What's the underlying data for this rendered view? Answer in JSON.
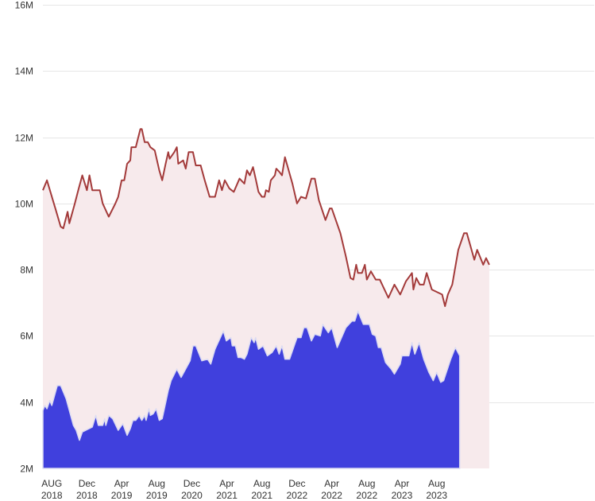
{
  "chart_data": {
    "type": "area",
    "y_tick_labels": [
      "2M",
      "4M",
      "6M",
      "8M",
      "10M",
      "12M",
      "14M",
      "16M"
    ],
    "y_ticks": [
      2000000,
      4000000,
      6000000,
      8000000,
      10000000,
      12000000,
      14000000,
      16000000
    ],
    "ylim": [
      2000000,
      16000000
    ],
    "x_range": [
      "2018-07-01",
      "2023-10-01"
    ],
    "x_ticks": [
      {
        "date": "2018-08-01",
        "month": "AUG",
        "year": "2018"
      },
      {
        "date": "2018-12-01",
        "month": "Dec",
        "year": "2018"
      },
      {
        "date": "2019-04-01",
        "month": "Apr",
        "year": "2019"
      },
      {
        "date": "2019-08-01",
        "month": "Aug",
        "year": "2019"
      },
      {
        "date": "2019-12-01",
        "month": "Dec",
        "year": "2020"
      },
      {
        "date": "2020-04-01",
        "month": "Apr",
        "year": "2021"
      },
      {
        "date": "2020-08-01",
        "month": "Aug",
        "year": "2021"
      },
      {
        "date": "2020-12-01",
        "month": "Dec",
        "year": "2022"
      },
      {
        "date": "2021-04-01",
        "month": "Apr",
        "year": "2022"
      },
      {
        "date": "2021-08-01",
        "month": "Aug",
        "year": "2022"
      },
      {
        "date": "2021-12-01",
        "month": "Apr",
        "year": "2023"
      },
      {
        "date": "2022-04-01",
        "month": "Aug",
        "year": "2023"
      }
    ],
    "grid": true,
    "colors": {
      "upper_line": "#a33a3a",
      "upper_fill": "#f7eaec",
      "lower_fill": "#4040dd",
      "grid": "#e6e6e6"
    },
    "series": [
      {
        "values": [
          [
            "2018-07-01",
            10400000
          ],
          [
            "2018-07-15",
            10700000
          ],
          [
            "2018-08-15",
            9800000
          ],
          [
            "2018-09-01",
            9300000
          ],
          [
            "2018-09-10",
            9250000
          ],
          [
            "2018-09-25",
            9750000
          ],
          [
            "2018-10-01",
            9400000
          ],
          [
            "2018-10-20",
            10000000
          ],
          [
            "2018-11-01",
            10400000
          ],
          [
            "2018-11-15",
            10850000
          ],
          [
            "2018-12-01",
            10400000
          ],
          [
            "2018-12-10",
            10850000
          ],
          [
            "2018-12-20",
            10400000
          ],
          [
            "2019-01-15",
            10400000
          ],
          [
            "2019-01-25",
            10000000
          ],
          [
            "2019-02-15",
            9600000
          ],
          [
            "2019-03-10",
            10000000
          ],
          [
            "2019-03-20",
            10200000
          ],
          [
            "2019-04-01",
            10700000
          ],
          [
            "2019-04-10",
            10700000
          ],
          [
            "2019-04-20",
            11200000
          ],
          [
            "2019-05-01",
            11300000
          ],
          [
            "2019-05-05",
            11700000
          ],
          [
            "2019-05-20",
            11700000
          ],
          [
            "2019-06-05",
            12250000
          ],
          [
            "2019-06-10",
            12250000
          ],
          [
            "2019-06-20",
            11850000
          ],
          [
            "2019-07-01",
            11850000
          ],
          [
            "2019-07-10",
            11700000
          ],
          [
            "2019-07-25",
            11600000
          ],
          [
            "2019-08-10",
            11000000
          ],
          [
            "2019-08-20",
            10700000
          ],
          [
            "2019-09-01",
            11200000
          ],
          [
            "2019-09-10",
            11550000
          ],
          [
            "2019-09-15",
            11350000
          ],
          [
            "2019-10-01",
            11550000
          ],
          [
            "2019-10-10",
            11700000
          ],
          [
            "2019-10-15",
            11200000
          ],
          [
            "2019-11-01",
            11300000
          ],
          [
            "2019-11-10",
            11050000
          ],
          [
            "2019-11-20",
            11550000
          ],
          [
            "2019-12-05",
            11550000
          ],
          [
            "2019-12-15",
            11150000
          ],
          [
            "2020-01-01",
            11150000
          ],
          [
            "2020-01-15",
            10700000
          ],
          [
            "2020-02-01",
            10200000
          ],
          [
            "2020-02-20",
            10200000
          ],
          [
            "2020-03-05",
            10700000
          ],
          [
            "2020-03-15",
            10400000
          ],
          [
            "2020-03-25",
            10700000
          ],
          [
            "2020-04-10",
            10450000
          ],
          [
            "2020-04-25",
            10350000
          ],
          [
            "2020-05-15",
            10750000
          ],
          [
            "2020-06-01",
            10600000
          ],
          [
            "2020-06-10",
            11000000
          ],
          [
            "2020-06-20",
            10850000
          ],
          [
            "2020-07-01",
            11100000
          ],
          [
            "2020-07-10",
            10750000
          ],
          [
            "2020-07-20",
            10350000
          ],
          [
            "2020-08-01",
            10200000
          ],
          [
            "2020-08-10",
            10200000
          ],
          [
            "2020-08-15",
            10400000
          ],
          [
            "2020-08-25",
            10350000
          ],
          [
            "2020-09-01",
            10700000
          ],
          [
            "2020-09-15",
            10850000
          ],
          [
            "2020-09-20",
            11050000
          ],
          [
            "2020-10-01",
            10950000
          ],
          [
            "2020-10-10",
            10850000
          ],
          [
            "2020-10-20",
            11400000
          ],
          [
            "2020-11-15",
            10600000
          ],
          [
            "2020-12-01",
            10000000
          ],
          [
            "2020-12-15",
            10200000
          ],
          [
            "2021-01-01",
            10150000
          ],
          [
            "2021-01-20",
            10750000
          ],
          [
            "2021-02-01",
            10750000
          ],
          [
            "2021-02-15",
            10100000
          ],
          [
            "2021-03-10",
            9500000
          ],
          [
            "2021-03-25",
            9850000
          ],
          [
            "2021-04-01",
            9850000
          ],
          [
            "2021-05-01",
            9100000
          ],
          [
            "2021-05-20",
            8400000
          ],
          [
            "2021-06-05",
            7750000
          ],
          [
            "2021-06-15",
            7700000
          ],
          [
            "2021-06-25",
            8150000
          ],
          [
            "2021-07-01",
            7900000
          ],
          [
            "2021-07-15",
            7900000
          ],
          [
            "2021-07-25",
            8150000
          ],
          [
            "2021-08-01",
            7700000
          ],
          [
            "2021-08-15",
            7950000
          ],
          [
            "2021-09-01",
            7700000
          ],
          [
            "2021-09-15",
            7700000
          ],
          [
            "2021-10-15",
            7150000
          ],
          [
            "2021-11-05",
            7550000
          ],
          [
            "2021-11-25",
            7250000
          ],
          [
            "2021-12-15",
            7650000
          ],
          [
            "2022-01-05",
            7900000
          ],
          [
            "2022-01-10",
            7400000
          ],
          [
            "2022-01-20",
            7750000
          ],
          [
            "2022-02-01",
            7550000
          ],
          [
            "2022-02-15",
            7550000
          ],
          [
            "2022-02-25",
            7900000
          ],
          [
            "2022-03-15",
            7400000
          ],
          [
            "2022-04-20",
            7250000
          ],
          [
            "2022-04-30",
            6900000
          ],
          [
            "2022-05-10",
            7250000
          ],
          [
            "2022-05-25",
            7550000
          ],
          [
            "2022-06-15",
            8600000
          ],
          [
            "2022-07-05",
            9100000
          ],
          [
            "2022-07-15",
            9100000
          ],
          [
            "2022-08-10",
            8300000
          ],
          [
            "2022-08-20",
            8600000
          ],
          [
            "2022-09-10",
            8150000
          ],
          [
            "2022-09-20",
            8350000
          ],
          [
            "2022-10-01",
            8150000
          ]
        ]
      },
      {
        "values": [
          [
            "2018-07-01",
            3750000
          ],
          [
            "2018-07-08",
            3900000
          ],
          [
            "2018-07-15",
            3800000
          ],
          [
            "2018-07-25",
            4050000
          ],
          [
            "2018-08-01",
            3900000
          ],
          [
            "2018-08-20",
            4500000
          ],
          [
            "2018-09-01",
            4500000
          ],
          [
            "2018-09-20",
            4100000
          ],
          [
            "2018-10-15",
            3300000
          ],
          [
            "2018-10-25",
            3150000
          ],
          [
            "2018-11-05",
            2850000
          ],
          [
            "2018-11-15",
            3100000
          ],
          [
            "2018-12-20",
            3250000
          ],
          [
            "2019-01-01",
            3600000
          ],
          [
            "2019-01-10",
            3300000
          ],
          [
            "2019-01-25",
            3300000
          ],
          [
            "2019-02-01",
            3500000
          ],
          [
            "2019-02-05",
            3300000
          ],
          [
            "2019-02-15",
            3600000
          ],
          [
            "2019-03-01",
            3500000
          ],
          [
            "2019-03-20",
            3150000
          ],
          [
            "2019-04-05",
            3350000
          ],
          [
            "2019-04-20",
            3000000
          ],
          [
            "2019-05-01",
            3200000
          ],
          [
            "2019-05-10",
            3450000
          ],
          [
            "2019-05-20",
            3450000
          ],
          [
            "2019-06-01",
            3600000
          ],
          [
            "2019-06-10",
            3450000
          ],
          [
            "2019-06-20",
            3600000
          ],
          [
            "2019-06-25",
            3450000
          ],
          [
            "2019-07-05",
            3800000
          ],
          [
            "2019-07-10",
            3600000
          ],
          [
            "2019-07-20",
            3650000
          ],
          [
            "2019-07-30",
            3800000
          ],
          [
            "2019-08-10",
            3450000
          ],
          [
            "2019-08-20",
            3500000
          ],
          [
            "2019-09-10",
            4350000
          ],
          [
            "2019-09-20",
            4650000
          ],
          [
            "2019-10-10",
            5000000
          ],
          [
            "2019-10-25",
            4750000
          ],
          [
            "2019-11-25",
            5250000
          ],
          [
            "2019-12-05",
            5700000
          ],
          [
            "2019-12-15",
            5700000
          ],
          [
            "2020-01-05",
            5250000
          ],
          [
            "2020-01-25",
            5300000
          ],
          [
            "2020-02-05",
            5150000
          ],
          [
            "2020-02-20",
            5600000
          ],
          [
            "2020-03-20",
            6150000
          ],
          [
            "2020-03-30",
            5850000
          ],
          [
            "2020-04-15",
            5950000
          ],
          [
            "2020-04-20",
            5700000
          ],
          [
            "2020-05-01",
            5700000
          ],
          [
            "2020-05-10",
            5350000
          ],
          [
            "2020-05-20",
            5350000
          ],
          [
            "2020-06-01",
            5300000
          ],
          [
            "2020-06-10",
            5450000
          ],
          [
            "2020-06-25",
            5950000
          ],
          [
            "2020-07-05",
            5800000
          ],
          [
            "2020-07-10",
            5950000
          ],
          [
            "2020-07-20",
            5600000
          ],
          [
            "2020-08-05",
            5700000
          ],
          [
            "2020-08-20",
            5400000
          ],
          [
            "2020-09-05",
            5500000
          ],
          [
            "2020-09-20",
            5700000
          ],
          [
            "2020-09-30",
            5450000
          ],
          [
            "2020-10-10",
            5700000
          ],
          [
            "2020-10-20",
            5300000
          ],
          [
            "2020-11-05",
            5300000
          ],
          [
            "2020-12-01",
            5950000
          ],
          [
            "2020-12-15",
            5950000
          ],
          [
            "2020-12-25",
            6250000
          ],
          [
            "2021-01-05",
            6250000
          ],
          [
            "2021-01-20",
            5850000
          ],
          [
            "2021-02-01",
            6050000
          ],
          [
            "2021-02-20",
            6000000
          ],
          [
            "2021-03-01",
            6350000
          ],
          [
            "2021-03-20",
            6100000
          ],
          [
            "2021-04-01",
            6250000
          ],
          [
            "2021-04-20",
            5650000
          ],
          [
            "2021-05-20",
            6250000
          ],
          [
            "2021-06-10",
            6450000
          ],
          [
            "2021-06-20",
            6450000
          ],
          [
            "2021-07-01",
            6750000
          ],
          [
            "2021-07-20",
            6350000
          ],
          [
            "2021-08-01",
            6350000
          ],
          [
            "2021-08-10",
            6350000
          ],
          [
            "2021-08-20",
            6050000
          ],
          [
            "2021-09-01",
            6000000
          ],
          [
            "2021-09-10",
            5650000
          ],
          [
            "2021-09-20",
            5650000
          ],
          [
            "2021-10-05",
            5200000
          ],
          [
            "2021-10-25",
            5000000
          ],
          [
            "2021-11-05",
            4850000
          ],
          [
            "2021-11-25",
            5150000
          ],
          [
            "2021-12-01",
            5400000
          ],
          [
            "2021-12-25",
            5400000
          ],
          [
            "2022-01-05",
            5800000
          ],
          [
            "2022-01-15",
            5450000
          ],
          [
            "2022-01-30",
            5800000
          ],
          [
            "2022-02-15",
            5300000
          ],
          [
            "2022-03-05",
            4900000
          ],
          [
            "2022-03-20",
            4650000
          ],
          [
            "2022-04-01",
            4900000
          ],
          [
            "2022-04-15",
            4600000
          ],
          [
            "2022-04-25",
            4650000
          ],
          [
            "2022-05-20",
            5300000
          ],
          [
            "2022-06-05",
            5650000
          ],
          [
            "2022-06-20",
            5400000
          ]
        ]
      }
    ]
  }
}
